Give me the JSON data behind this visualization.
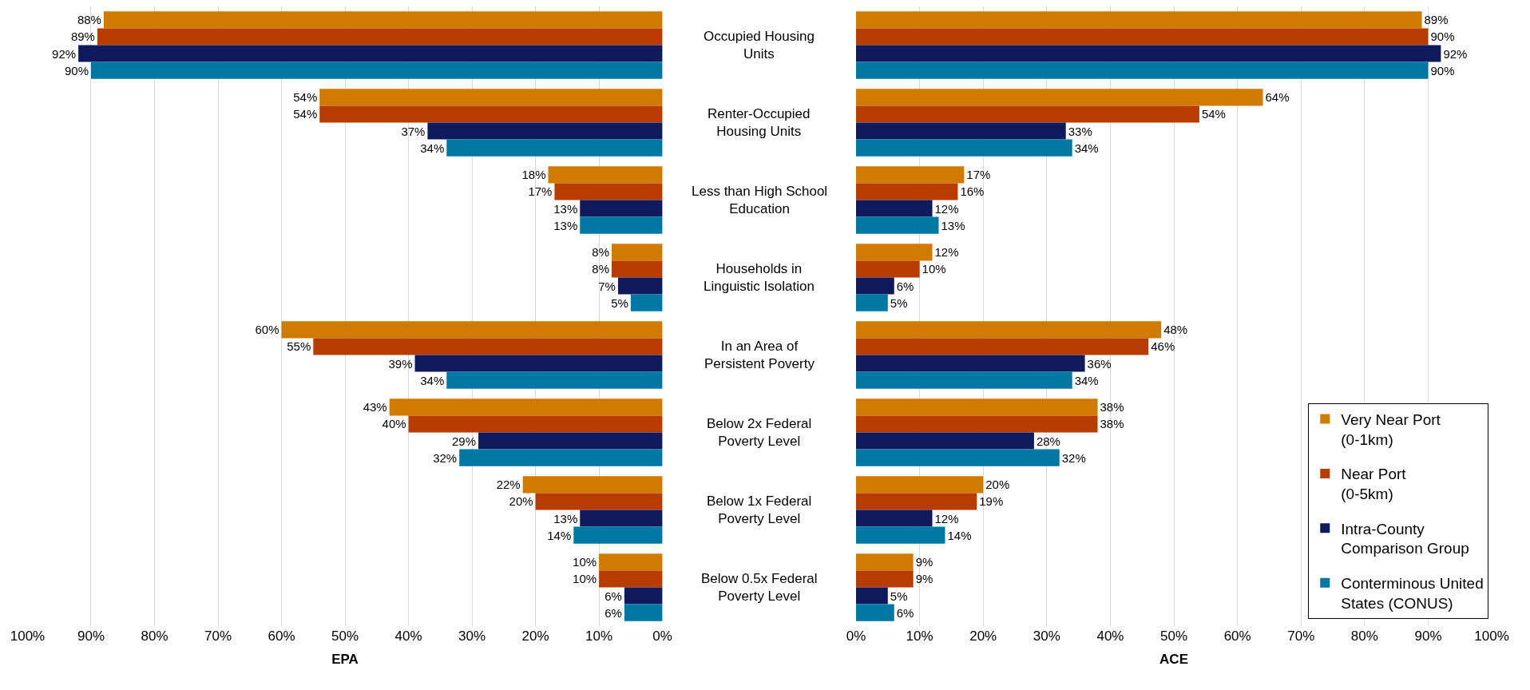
{
  "chart_data": [
    {
      "type": "bar",
      "orientation": "horizontal",
      "xlabel": "EPA",
      "categories": [
        "Occupied Housing Units",
        "Renter-Occupied Housing Units",
        "Less than High School Education",
        "Households in Linguistic Isolation",
        "In an Area of Persistent Poverty",
        "Below 2x Federal Poverty Level",
        "Below 1x Federal Poverty Level",
        "Below 0.5x Federal Poverty Level"
      ],
      "series": [
        {
          "color": "#d07b00",
          "values": [
            88,
            54,
            18,
            8,
            60,
            43,
            22,
            10
          ],
          "value_labels": [
            "88%",
            "54%",
            "18%",
            "8%",
            "60%",
            "43%",
            "22%",
            "10%"
          ]
        },
        {
          "color": "#b83b00",
          "values": [
            89,
            54,
            17,
            8,
            55,
            40,
            20,
            10
          ],
          "value_labels": [
            "89%",
            "54%",
            "17%",
            "8%",
            "55%",
            "40%",
            "20%",
            "10%"
          ]
        },
        {
          "color": "#0f1a5c",
          "values": [
            92,
            37,
            13,
            7,
            39,
            29,
            13,
            6
          ],
          "value_labels": [
            "92%",
            "37%",
            "13%",
            "7%",
            "39%",
            "29%",
            "13%",
            "6%"
          ]
        },
        {
          "color": "#0078a3",
          "values": [
            90,
            34,
            13,
            5,
            34,
            32,
            14,
            6
          ],
          "value_labels": [
            "90%",
            "34%",
            "13%",
            "5%",
            "34%",
            "32%",
            "14%",
            "6%"
          ]
        }
      ],
      "xlim": [
        100,
        0
      ],
      "xticks": [
        {
          "value": 100,
          "label": "100%"
        },
        {
          "value": 90,
          "label": "90%"
        },
        {
          "value": 80,
          "label": "80%"
        },
        {
          "value": 70,
          "label": "70%"
        },
        {
          "value": 60,
          "label": "60%"
        },
        {
          "value": 50,
          "label": "50%"
        },
        {
          "value": 40,
          "label": "40%"
        },
        {
          "value": 30,
          "label": "30%"
        },
        {
          "value": 20,
          "label": "20%"
        },
        {
          "value": 10,
          "label": "10%"
        },
        {
          "value": 0,
          "label": "0%"
        }
      ],
      "grid": "x",
      "tick_labels": "x"
    },
    {
      "type": "bar",
      "orientation": "horizontal",
      "xlabel": "ACE",
      "categories": [
        "Occupied Housing Units",
        "Renter-Occupied Housing Units",
        "Less than High School Education",
        "Households in Linguistic Isolation",
        "In an Area of Persistent Poverty",
        "Below 2x Federal Poverty Level",
        "Below 1x Federal Poverty Level",
        "Below 0.5x Federal Poverty Level"
      ],
      "series": [
        {
          "name": "Very Near Port (0-1km)",
          "color": "#d07b00",
          "values": [
            89,
            64,
            17,
            12,
            48,
            38,
            20,
            9
          ],
          "value_labels": [
            "89%",
            "64%",
            "17%",
            "12%",
            "48%",
            "38%",
            "20%",
            "9%"
          ]
        },
        {
          "name": "Near Port (0-5km)",
          "color": "#b83b00",
          "values": [
            90,
            54,
            16,
            10,
            46,
            38,
            19,
            9
          ],
          "value_labels": [
            "90%",
            "54%",
            "16%",
            "10%",
            "46%",
            "38%",
            "19%",
            "9%"
          ]
        },
        {
          "name": "Intra-County Comparison Group",
          "color": "#0f1a5c",
          "values": [
            92,
            33,
            12,
            6,
            36,
            28,
            12,
            5
          ],
          "value_labels": [
            "92%",
            "33%",
            "12%",
            "6%",
            "36%",
            "28%",
            "12%",
            "5%"
          ]
        },
        {
          "name": "Conterminous United States (CONUS)",
          "color": "#0078a3",
          "values": [
            90,
            34,
            13,
            5,
            34,
            32,
            14,
            6
          ],
          "value_labels": [
            "90%",
            "34%",
            "13%",
            "5%",
            "34%",
            "32%",
            "14%",
            "6%"
          ]
        }
      ],
      "xlim": [
        0,
        100
      ],
      "xticks": [
        {
          "value": 0,
          "label": "0%"
        },
        {
          "value": 10,
          "label": "10%"
        },
        {
          "value": 20,
          "label": "20%"
        },
        {
          "value": 30,
          "label": "30%"
        },
        {
          "value": 40,
          "label": "40%"
        },
        {
          "value": 50,
          "label": "50%"
        },
        {
          "value": 60,
          "label": "60%"
        },
        {
          "value": 70,
          "label": "70%"
        },
        {
          "value": 80,
          "label": "80%"
        },
        {
          "value": 90,
          "label": "90%"
        },
        {
          "value": 100,
          "label": "100%"
        }
      ],
      "grid": "x",
      "legend": "bottom right"
    }
  ]
}
